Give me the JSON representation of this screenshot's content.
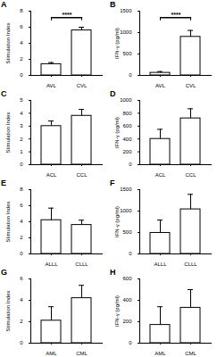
{
  "chart_data": [
    {
      "type": "bar",
      "title": "A",
      "y_label": "Stimulation Index",
      "categories": [
        "AVL",
        "CVL"
      ],
      "values": [
        1.4,
        5.6
      ],
      "errors": [
        0.2,
        0.4
      ],
      "color": "#ffffff",
      "ylim": [
        0,
        8
      ],
      "yticks": [
        0,
        2,
        4,
        6,
        8
      ],
      "annotations": [
        {
          "text": "****",
          "from": "AVL",
          "to": "CVL"
        }
      ]
    },
    {
      "type": "bar",
      "title": "B",
      "y_label": "IFN-γ (pg/ml)",
      "categories": [
        "AVL",
        "CVL"
      ],
      "values": [
        60,
        900
      ],
      "errors": [
        30,
        150
      ],
      "color": "#ffffff",
      "ylim": [
        0,
        1500
      ],
      "yticks": [
        0,
        500,
        1000,
        1500
      ],
      "annotations": [
        {
          "text": "****",
          "from": "AVL",
          "to": "CVL"
        }
      ]
    },
    {
      "type": "bar",
      "title": "C",
      "y_label": "Stimulation Index",
      "categories": [
        "ACL",
        "CCL"
      ],
      "values": [
        3.0,
        3.8
      ],
      "errors": [
        0.4,
        0.5
      ],
      "color": "#ffffff",
      "ylim": [
        0,
        5
      ],
      "yticks": [
        0,
        1,
        2,
        3,
        4,
        5
      ]
    },
    {
      "type": "bar",
      "title": "D",
      "y_label": "IFN-γ (pg/ml)",
      "categories": [
        "ACL",
        "CCL"
      ],
      "values": [
        400,
        720
      ],
      "errors": [
        150,
        150
      ],
      "color": "#ffffff",
      "ylim": [
        0,
        1000
      ],
      "yticks": [
        0,
        200,
        400,
        600,
        800,
        1000
      ]
    },
    {
      "type": "bar",
      "title": "E",
      "y_label": "Stimulation Index",
      "categories": [
        "ALLL",
        "CLLL"
      ],
      "values": [
        4.2,
        3.6
      ],
      "errors": [
        1.5,
        0.6
      ],
      "color": "#ffffff",
      "ylim": [
        0,
        8
      ],
      "yticks": [
        0,
        2,
        4,
        6,
        8
      ]
    },
    {
      "type": "bar",
      "title": "F",
      "y_label": "IFN-γ (pg/ml)",
      "categories": [
        "ALLL",
        "CLLL"
      ],
      "values": [
        490,
        1040
      ],
      "errors": [
        300,
        350
      ],
      "color": "#ffffff",
      "ylim": [
        0,
        1500
      ],
      "yticks": [
        0,
        500,
        1000,
        1500
      ]
    },
    {
      "type": "bar",
      "title": "G",
      "y_label": "Stimulation Index",
      "categories": [
        "AML",
        "CML"
      ],
      "values": [
        2.1,
        4.2
      ],
      "errors": [
        1.3,
        1.2
      ],
      "color": "#ffffff",
      "ylim": [
        0,
        6
      ],
      "yticks": [
        0,
        2,
        4,
        6
      ]
    },
    {
      "type": "bar",
      "title": "H",
      "y_label": "IFN-γ (pg/ml)",
      "categories": [
        "AML",
        "CML"
      ],
      "values": [
        170,
        330
      ],
      "errors": [
        170,
        170
      ],
      "color": "#ffffff",
      "ylim": [
        0,
        600
      ],
      "yticks": [
        0,
        200,
        400,
        600
      ]
    }
  ]
}
